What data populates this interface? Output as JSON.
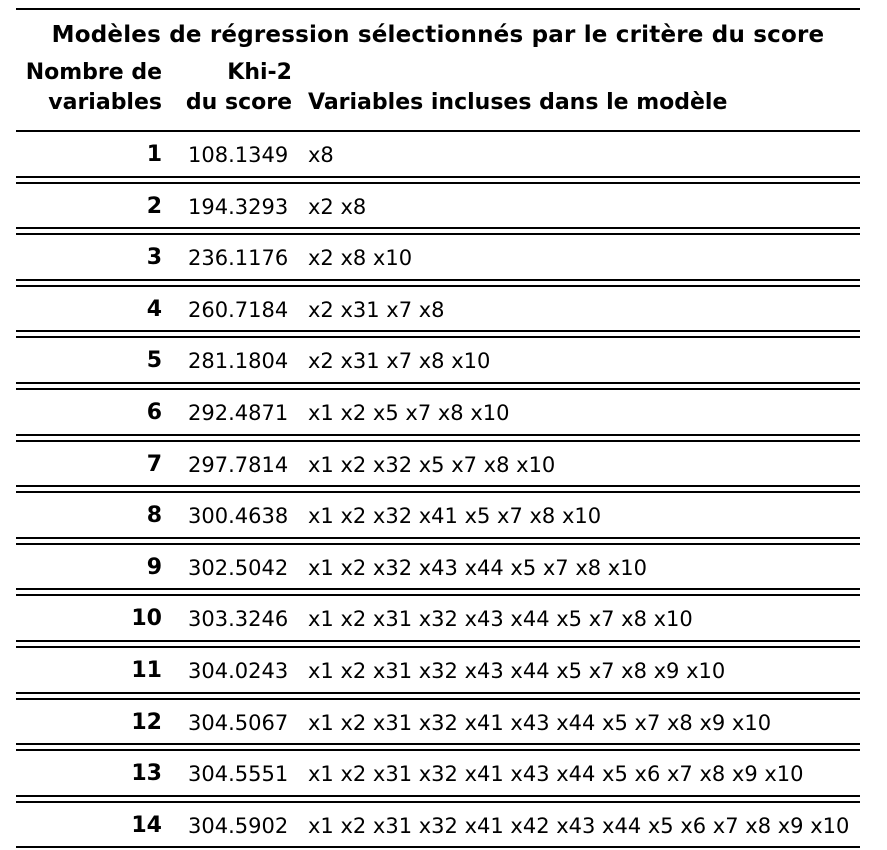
{
  "title": "Modèles de régression sélectionnés par le critère du score",
  "columns": {
    "n_line1": "Nombre de",
    "n_line2": "variables",
    "k_line1": "Khi-2",
    "k_line2": "du score",
    "vars": "Variables incluses dans le modèle"
  },
  "rows": [
    {
      "n": "1",
      "chi": "108.1349",
      "vars": "x8"
    },
    {
      "n": "2",
      "chi": "194.3293",
      "vars": "x2 x8"
    },
    {
      "n": "3",
      "chi": "236.1176",
      "vars": "x2 x8 x10"
    },
    {
      "n": "4",
      "chi": "260.7184",
      "vars": "x2 x31 x7 x8"
    },
    {
      "n": "5",
      "chi": "281.1804",
      "vars": "x2 x31 x7 x8 x10"
    },
    {
      "n": "6",
      "chi": "292.4871",
      "vars": "x1 x2 x5 x7 x8 x10"
    },
    {
      "n": "7",
      "chi": "297.7814",
      "vars": "x1 x2 x32 x5 x7 x8 x10"
    },
    {
      "n": "8",
      "chi": "300.4638",
      "vars": "x1 x2 x32 x41 x5 x7 x8 x10"
    },
    {
      "n": "9",
      "chi": "302.5042",
      "vars": "x1 x2 x32 x43 x44 x5 x7 x8 x10"
    },
    {
      "n": "10",
      "chi": "303.3246",
      "vars": "x1 x2 x31 x32 x43 x44 x5 x7 x8 x10"
    },
    {
      "n": "11",
      "chi": "304.0243",
      "vars": "x1 x2 x31 x32 x43 x44 x5 x7 x8 x9 x10"
    },
    {
      "n": "12",
      "chi": "304.5067",
      "vars": "x1 x2 x31 x32 x41 x43 x44 x5 x7 x8 x9 x10"
    },
    {
      "n": "13",
      "chi": "304.5551",
      "vars": "x1 x2 x31 x32 x41 x43 x44 x5 x6 x7 x8 x9 x10"
    },
    {
      "n": "14",
      "chi": "304.5902",
      "vars": "x1 x2 x31 x32 x41 x42 x43 x44 x5 x6 x7 x8 x9 x10"
    }
  ]
}
